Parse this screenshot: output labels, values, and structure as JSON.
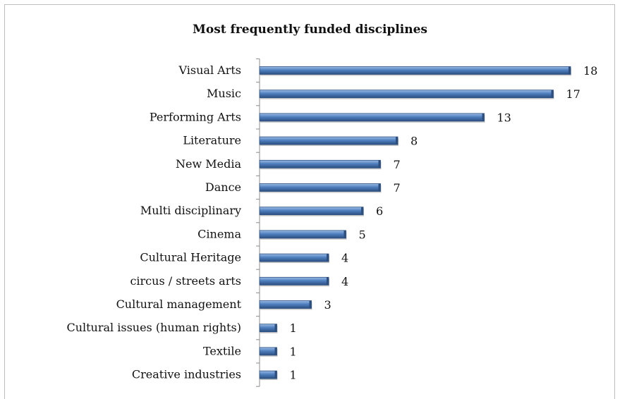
{
  "chart_data": {
    "type": "bar",
    "orientation": "horizontal",
    "title": "Most frequently funded disciplines",
    "categories": [
      "Visual Arts",
      "Music",
      "Performing Arts",
      "Literature",
      "New Media",
      "Dance",
      "Multi disciplinary",
      "Cinema",
      "Cultural Heritage",
      "circus / streets arts",
      "Cultural management",
      "Cultural issues (human rights)",
      "Textile",
      "Creative industries"
    ],
    "values": [
      18,
      17,
      13,
      8,
      7,
      7,
      6,
      5,
      4,
      4,
      3,
      1,
      1,
      1
    ],
    "xlim": [
      0,
      18
    ],
    "data_labels": true,
    "legend": "none",
    "grid": false,
    "colors": {
      "bar_fill": "#4f7fbf",
      "bar_highlight": "#9cbde6",
      "bar_edge": "#2c4f80",
      "axis": "#8c8c8c"
    }
  }
}
